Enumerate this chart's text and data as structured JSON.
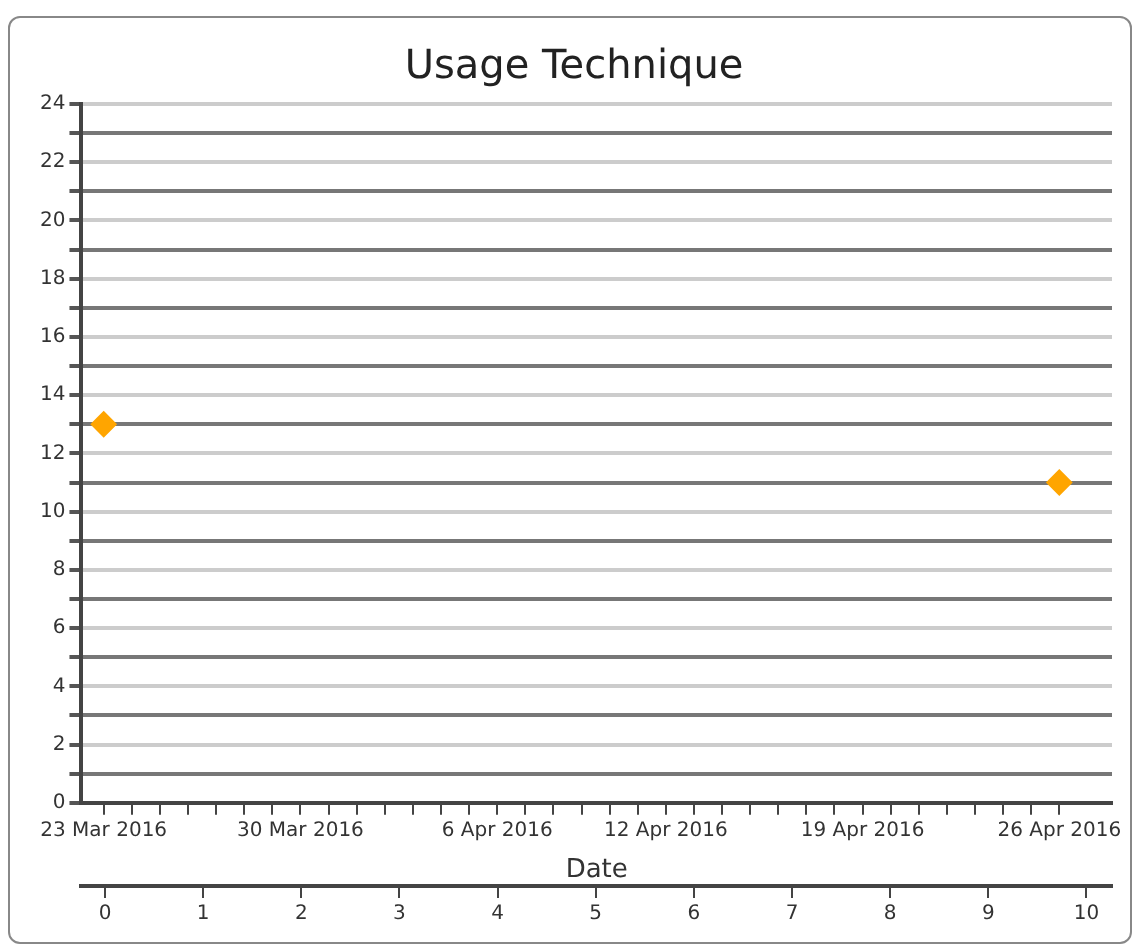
{
  "chart_data": {
    "type": "scatter",
    "title": "Usage Technique",
    "xlabel": "Date",
    "x": [
      "2016-03-23",
      "2016-04-26"
    ],
    "series": [
      {
        "color": "#ffa500",
        "values": [
          13,
          11
        ]
      }
    ],
    "xlim": [
      "2016-03-22T05:00",
      "2016-04-27T21:00"
    ],
    "xticks": [
      {
        "value": "2016-03-23",
        "label": "23 Mar 2016"
      },
      {
        "value": "2016-03-24",
        "label": null
      },
      {
        "value": "2016-03-25",
        "label": null
      },
      {
        "value": "2016-03-26",
        "label": null
      },
      {
        "value": "2016-03-27",
        "label": null
      },
      {
        "value": "2016-03-28",
        "label": null
      },
      {
        "value": "2016-03-29",
        "label": null
      },
      {
        "value": "2016-03-30",
        "label": "30 Mar 2016"
      },
      {
        "value": "2016-03-31",
        "label": null
      },
      {
        "value": "2016-04-01",
        "label": null
      },
      {
        "value": "2016-04-02",
        "label": null
      },
      {
        "value": "2016-04-03",
        "label": null
      },
      {
        "value": "2016-04-04",
        "label": null
      },
      {
        "value": "2016-04-05",
        "label": null
      },
      {
        "value": "2016-04-06",
        "label": "6 Apr 2016"
      },
      {
        "value": "2016-04-07",
        "label": null
      },
      {
        "value": "2016-04-08",
        "label": null
      },
      {
        "value": "2016-04-09",
        "label": null
      },
      {
        "value": "2016-04-10",
        "label": null
      },
      {
        "value": "2016-04-11",
        "label": null
      },
      {
        "value": "2016-04-12",
        "label": "12 Apr 2016"
      },
      {
        "value": "2016-04-13",
        "label": null
      },
      {
        "value": "2016-04-14",
        "label": null
      },
      {
        "value": "2016-04-15",
        "label": null
      },
      {
        "value": "2016-04-16",
        "label": null
      },
      {
        "value": "2016-04-17",
        "label": null
      },
      {
        "value": "2016-04-18",
        "label": null
      },
      {
        "value": "2016-04-19",
        "label": "19 Apr 2016"
      },
      {
        "value": "2016-04-20",
        "label": null
      },
      {
        "value": "2016-04-21",
        "label": null
      },
      {
        "value": "2016-04-22",
        "label": null
      },
      {
        "value": "2016-04-23",
        "label": null
      },
      {
        "value": "2016-04-24",
        "label": null
      },
      {
        "value": "2016-04-25",
        "label": null
      },
      {
        "value": "2016-04-26",
        "label": "26 Apr 2016"
      }
    ],
    "x2lim": [
      -0.24,
      10.26
    ],
    "x2ticks": [
      0,
      1,
      2,
      3,
      4,
      5,
      6,
      7,
      8,
      9,
      10
    ],
    "ylim": [
      0,
      24
    ],
    "yticks": [
      0,
      {
        "value": 1,
        "label": null
      },
      2,
      {
        "value": 3,
        "label": null
      },
      4,
      {
        "value": 5,
        "label": null
      },
      6,
      {
        "value": 7,
        "label": null
      },
      8,
      {
        "value": 9,
        "label": null
      },
      10,
      {
        "value": 11,
        "label": null
      },
      12,
      {
        "value": 13,
        "label": null
      },
      14,
      {
        "value": 15,
        "label": null
      },
      16,
      {
        "value": 17,
        "label": null
      },
      18,
      {
        "value": 19,
        "label": null
      },
      20,
      {
        "value": 21,
        "label": null
      },
      22,
      {
        "value": 23,
        "label": null
      },
      24
    ],
    "grid": "y",
    "legend": false,
    "marker": "diamond"
  }
}
